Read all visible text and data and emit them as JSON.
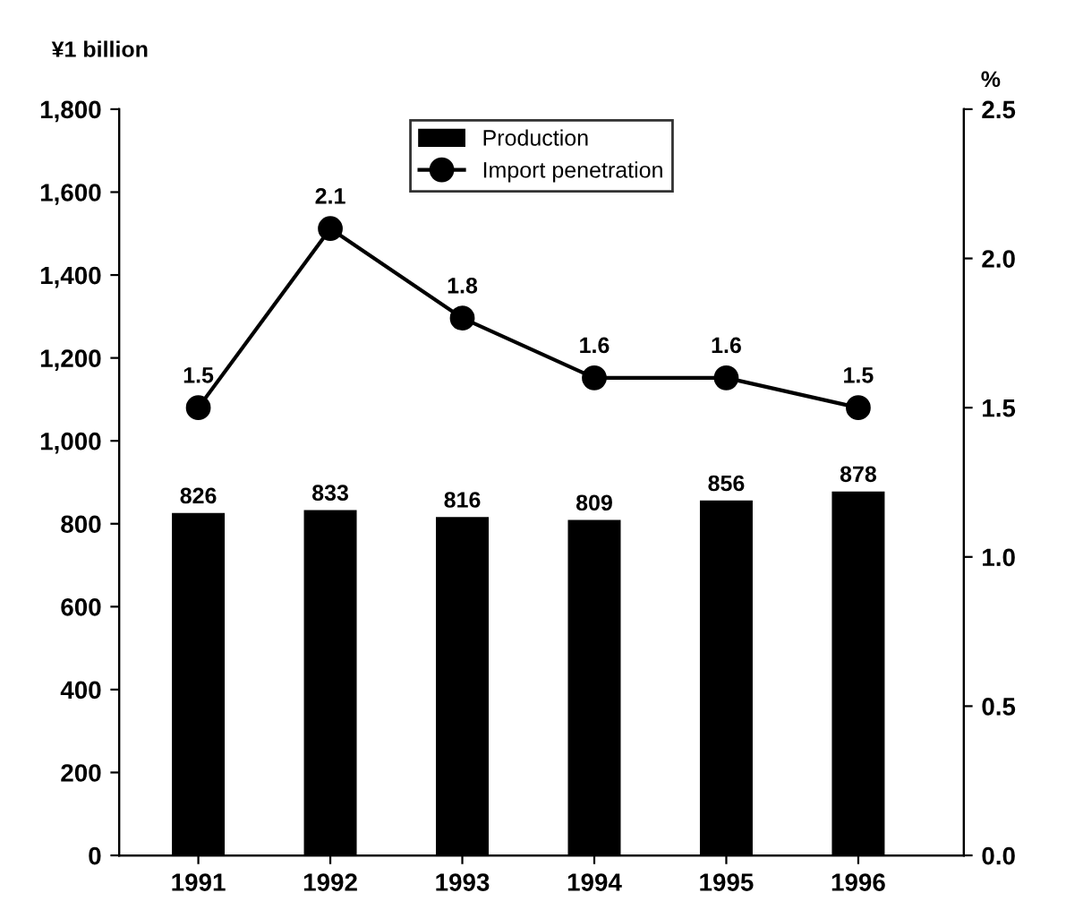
{
  "chart_data": {
    "type": "bar",
    "ylabel": "¥1 billion",
    "y2label": "%",
    "categories": [
      "1991",
      "1992",
      "1993",
      "1994",
      "1995",
      "1996"
    ],
    "series": [
      {
        "name": "Production",
        "color": "#000000",
        "values": [
          826,
          833,
          816,
          809,
          856,
          878
        ]
      },
      {
        "name": "Import penetration",
        "type": "line",
        "axis": "y2",
        "color": "#000000",
        "marker": "circle",
        "line_style": "solid",
        "values": [
          1.5,
          2.1,
          1.8,
          1.6,
          1.6,
          1.5
        ]
      }
    ],
    "ylim": [
      0,
      1800
    ],
    "yticks": [
      0,
      200,
      400,
      600,
      800,
      {
        "value": 1000,
        "label": "1,000"
      },
      {
        "value": 1200,
        "label": "1,200"
      },
      {
        "value": 1400,
        "label": "1,400"
      },
      {
        "value": 1600,
        "label": "1,600"
      },
      {
        "value": 1800,
        "label": "1,800"
      }
    ],
    "y2lim": [
      0,
      2.5
    ],
    "y2ticks": [
      {
        "value": 0,
        "label": "0.0"
      },
      {
        "value": 0.5,
        "label": "0.5"
      },
      {
        "value": 1,
        "label": "1.0"
      },
      {
        "value": 1.5,
        "label": "1.5"
      },
      {
        "value": 2,
        "label": "2.0"
      },
      {
        "value": 2.5,
        "label": "2.5"
      }
    ],
    "data_labels": true,
    "grid": false,
    "legend": "top"
  }
}
